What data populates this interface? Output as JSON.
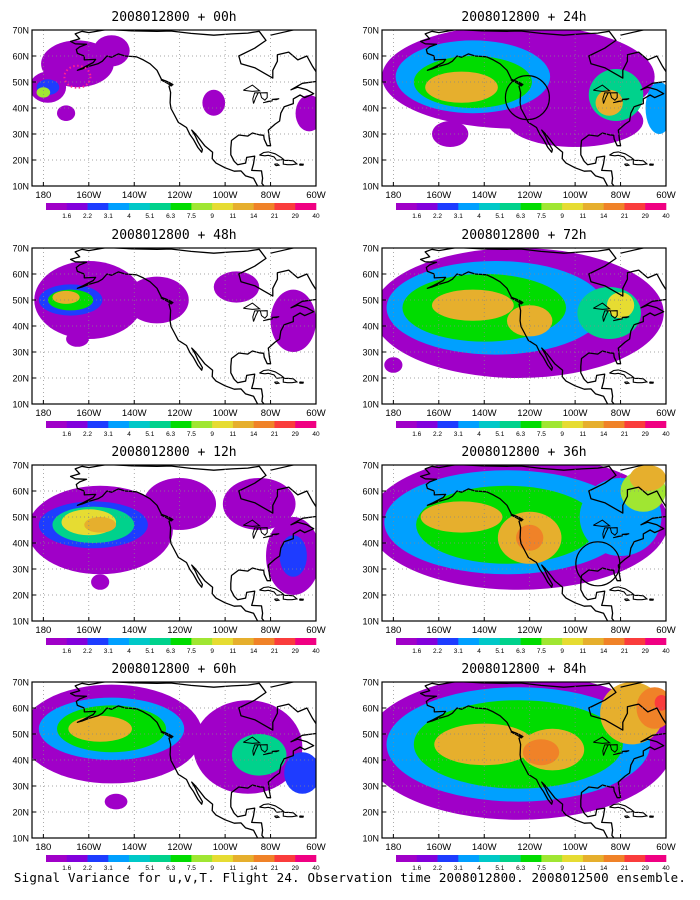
{
  "panels": [
    {
      "title": "2008012800 + 00h",
      "lead_hours": 0
    },
    {
      "title": "2008012800 + 48h",
      "lead_hours": 48
    },
    {
      "title": "2008012800 + 12h",
      "lead_hours": 12
    },
    {
      "title": "2008012800 + 60h",
      "lead_hours": 60
    },
    {
      "title": "2008012800 + 24h",
      "lead_hours": 24
    },
    {
      "title": "2008012800 + 72h",
      "lead_hours": 72
    },
    {
      "title": "2008012800 + 36h",
      "lead_hours": 36
    },
    {
      "title": "2008012800 + 84h",
      "lead_hours": 84
    }
  ],
  "lat_labels": [
    "10N",
    "20N",
    "30N",
    "40N",
    "50N",
    "60N",
    "70N"
  ],
  "lon_labels": [
    "180",
    "160W",
    "140W",
    "120W",
    "100W",
    "80W",
    "60W"
  ],
  "colorbar": {
    "labels": [
      "1.6",
      "2.2",
      "3.1",
      "4",
      "5.1",
      "6.3",
      "7.5",
      "9",
      "11",
      "14",
      "21",
      "29",
      "40"
    ],
    "colors": [
      "#a000c8",
      "#8200dc",
      "#1e3cff",
      "#00a0ff",
      "#00c8c8",
      "#00d28c",
      "#00dc00",
      "#a0e632",
      "#e6dc32",
      "#e6af2d",
      "#f08228",
      "#fa3c3c",
      "#f00082"
    ]
  },
  "caption": "Signal Variance for u,v,T. Flight 24. Observation time 2008012800. 2008012500 ensemble."
}
